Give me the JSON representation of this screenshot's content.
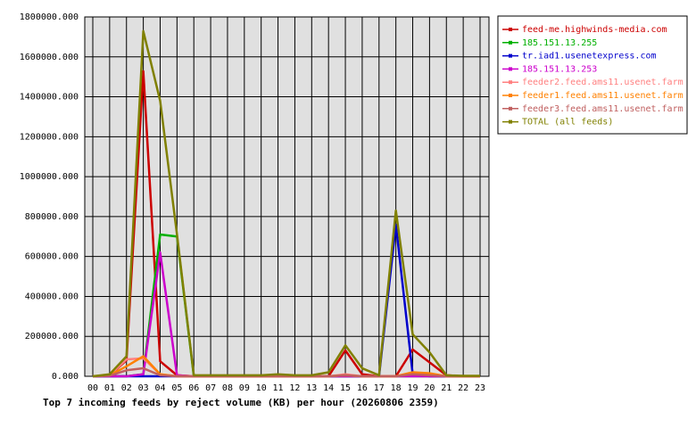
{
  "chart_data": {
    "type": "line",
    "title": "Top 7 incoming feeds by reject volume (KB) per hour (20260806 2359)",
    "categories": [
      "00",
      "01",
      "02",
      "03",
      "04",
      "05",
      "06",
      "07",
      "08",
      "09",
      "10",
      "11",
      "12",
      "13",
      "14",
      "15",
      "16",
      "17",
      "18",
      "19",
      "20",
      "21",
      "22",
      "23"
    ],
    "series": [
      {
        "name": "feed-me.highwinds-media.com",
        "color": "#cc0000",
        "values": [
          0,
          5000,
          80000,
          1528000,
          75000,
          5000,
          0,
          0,
          0,
          0,
          0,
          0,
          0,
          0,
          0,
          130000,
          10000,
          0,
          0,
          134000,
          70000,
          5000,
          0,
          0
        ]
      },
      {
        "name": "185.151.13.255",
        "color": "#00b000",
        "values": [
          0,
          0,
          0,
          10000,
          710000,
          700000,
          0,
          0,
          0,
          0,
          0,
          0,
          0,
          0,
          0,
          0,
          0,
          0,
          0,
          0,
          0,
          0,
          0,
          0
        ]
      },
      {
        "name": "tr.iad1.usenetexpress.com",
        "color": "#0000cc",
        "values": [
          0,
          0,
          0,
          0,
          0,
          0,
          0,
          0,
          0,
          0,
          0,
          0,
          0,
          0,
          0,
          0,
          0,
          0,
          760000,
          10000,
          0,
          0,
          0,
          0
        ]
      },
      {
        "name": "185.151.13.253",
        "color": "#cc00cc",
        "values": [
          0,
          0,
          0,
          10000,
          620000,
          5000,
          0,
          0,
          0,
          0,
          0,
          0,
          0,
          0,
          0,
          0,
          0,
          0,
          0,
          0,
          0,
          0,
          0,
          0
        ]
      },
      {
        "name": "feeder2.feed.ams11.usenet.farm",
        "color": "#ff8080",
        "values": [
          0,
          5000,
          85000,
          90000,
          10000,
          0,
          0,
          0,
          0,
          0,
          0,
          0,
          0,
          0,
          0,
          10000,
          0,
          0,
          0,
          15000,
          10000,
          0,
          0,
          0
        ]
      },
      {
        "name": "feeder1.feed.ams11.usenet.farm",
        "color": "#ff8000",
        "values": [
          0,
          5000,
          50000,
          100000,
          10000,
          0,
          0,
          0,
          0,
          0,
          0,
          0,
          0,
          0,
          0,
          5000,
          0,
          0,
          0,
          20000,
          15000,
          0,
          0,
          0
        ]
      },
      {
        "name": "feeder3.feed.ams11.usenet.farm",
        "color": "#c06060",
        "values": [
          0,
          3000,
          30000,
          40000,
          5000,
          0,
          0,
          0,
          0,
          0,
          0,
          0,
          0,
          0,
          0,
          5000,
          0,
          0,
          0,
          10000,
          5000,
          0,
          0,
          0
        ]
      },
      {
        "name": "TOTAL (all feeds)",
        "color": "#808000",
        "values": [
          0,
          10000,
          100000,
          1729000,
          1380000,
          710000,
          5000,
          5000,
          5000,
          5000,
          5000,
          10000,
          5000,
          5000,
          20000,
          155000,
          40000,
          5000,
          830000,
          210000,
          120000,
          5000,
          2000,
          2000
        ]
      }
    ],
    "ylim": [
      0,
      1800000
    ],
    "yticks": [
      {
        "value": 0,
        "label": "0.000"
      },
      {
        "value": 200000,
        "label": "200000.000"
      },
      {
        "value": 400000,
        "label": "400000.000"
      },
      {
        "value": 600000,
        "label": "600000.000"
      },
      {
        "value": 800000,
        "label": "800000.000"
      },
      {
        "value": 1000000,
        "label": "1000000.000"
      },
      {
        "value": 1200000,
        "label": "1200000.000"
      },
      {
        "value": 1400000,
        "label": "1400000.000"
      },
      {
        "value": 1600000,
        "label": "1600000.000"
      },
      {
        "value": 1800000,
        "label": "1800000.000"
      }
    ],
    "grid": true,
    "legend": "right"
  }
}
